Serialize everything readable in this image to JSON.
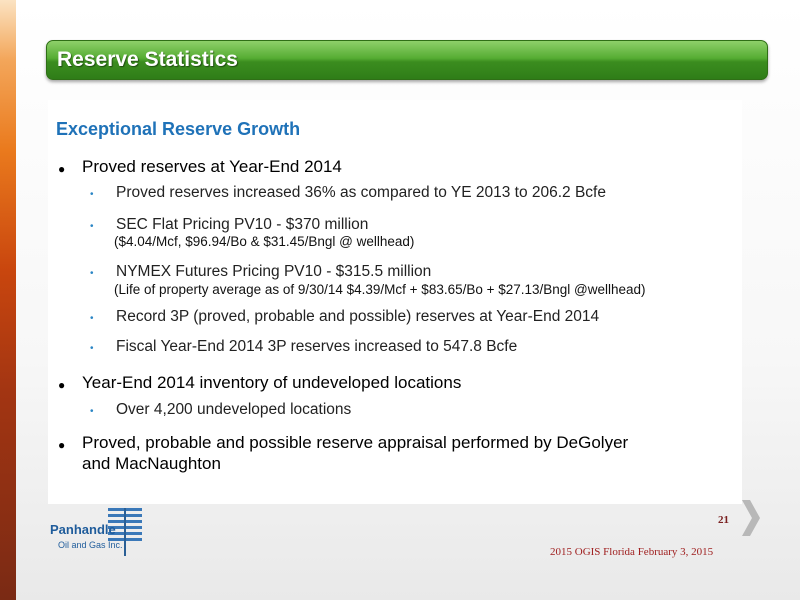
{
  "title": "Reserve Statistics",
  "section_heading": "Exceptional Reserve Growth",
  "bullets": [
    {
      "text": "Proved reserves at Year-End 2014",
      "sub": [
        {
          "text": "Proved reserves increased 36% as compared to YE 2013 to 206.2 Bcfe"
        },
        {
          "text": "SEC Flat Pricing PV10 - $370 million",
          "note": "($4.04/Mcf, $96.94/Bo & $31.45/Bngl @ wellhead)"
        },
        {
          "text": "NYMEX Futures Pricing PV10 - $315.5 million",
          "note": "(Life of property average as of 9/30/14  $4.39/Mcf + $83.65/Bo + $27.13/Bngl @wellhead)"
        },
        {
          "text": "Record 3P (proved, probable and possible) reserves at Year-End 2014"
        },
        {
          "text": "Fiscal Year-End 2014 3P reserves increased to 547.8 Bcfe"
        }
      ]
    },
    {
      "text": "Year-End 2014 inventory of undeveloped locations",
      "sub": [
        {
          "text": "Over 4,200 undeveloped locations"
        }
      ]
    },
    {
      "text_line1": "Proved, probable and possible reserve appraisal performed by DeGolyer",
      "text_line2": "and MacNaughton"
    }
  ],
  "page_number": "21",
  "footer": "2015 OGIS Florida February 3, 2015",
  "logo": {
    "name": "Panhandle",
    "sub": "Oil and Gas Inc."
  },
  "colors": {
    "title_green": "#3b8d1f",
    "heading_blue": "#1f72b8",
    "footer_red": "#a02020"
  }
}
